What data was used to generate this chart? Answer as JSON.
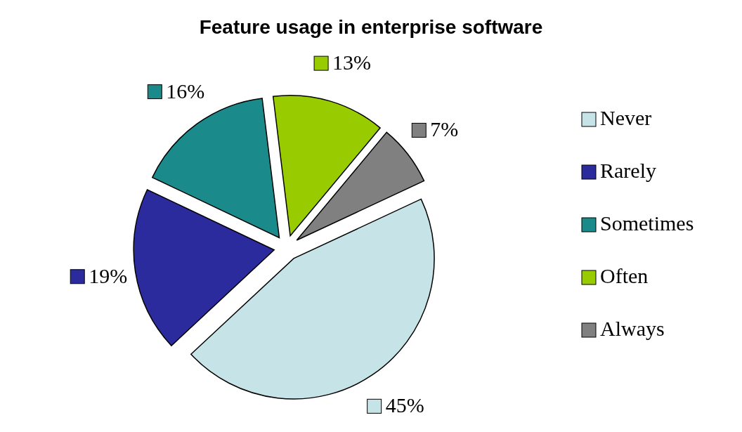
{
  "chart_data": {
    "type": "pie",
    "title": "Feature usage in enterprise software",
    "categories": [
      "Never",
      "Rarely",
      "Sometimes",
      "Often",
      "Always"
    ],
    "values": [
      45,
      19,
      16,
      13,
      7
    ],
    "value_labels": [
      "45%",
      "19%",
      "16%",
      "13%",
      "7%"
    ],
    "colors": [
      "#c6e4e8",
      "#2b2b9e",
      "#1a8a8a",
      "#99cc00",
      "#808080"
    ],
    "legend": "right"
  }
}
